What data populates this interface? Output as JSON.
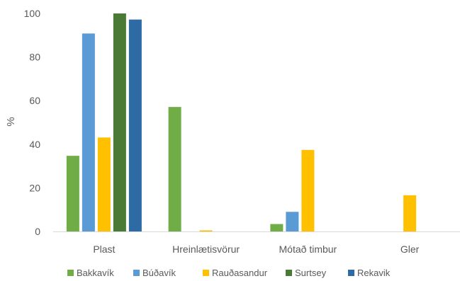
{
  "chart_data": {
    "type": "bar",
    "title": "",
    "xlabel": "",
    "ylabel": "%",
    "ylim": [
      0,
      100
    ],
    "yticks": [
      0,
      20,
      40,
      60,
      80,
      100
    ],
    "grid": false,
    "legend_position": "bottom",
    "categories": [
      "Plast",
      "Hreinlætisvörur",
      "Mótað timbur",
      "Gler"
    ],
    "series": [
      {
        "name": "Bakkavík",
        "color": "#70ad47",
        "values": [
          34.7,
          57.1,
          3.4,
          0
        ]
      },
      {
        "name": "Búðavík",
        "color": "#5b9bd5",
        "values": [
          90.8,
          0,
          9.0,
          0
        ]
      },
      {
        "name": "Rauðasandur",
        "color": "#ffc000",
        "values": [
          43.1,
          0.5,
          37.4,
          16.6
        ]
      },
      {
        "name": "Surtsey",
        "color": "#4a7a35",
        "values": [
          100,
          0,
          0,
          0
        ]
      },
      {
        "name": "Rekavik",
        "color": "#2e6aa3",
        "values": [
          97.2,
          0,
          0,
          0
        ]
      }
    ]
  }
}
